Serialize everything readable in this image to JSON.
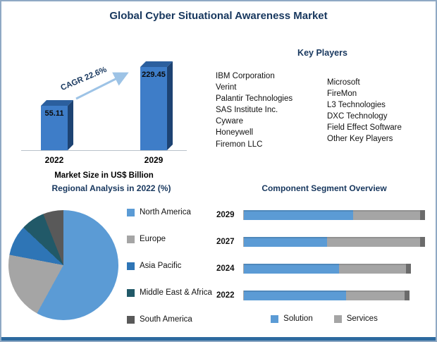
{
  "title": "Global Cyber Situational Awareness Market",
  "key_players": {
    "heading": "Key Players",
    "column1": [
      "IBM Corporation",
      "Verint",
      "Palantir Technologies",
      "SAS Institute Inc.",
      "Cyware",
      "Honeywell",
      "Firemon LLC"
    ],
    "column2": [
      "Microsoft",
      "FireMon",
      "L3 Technologies",
      "DXC Technology",
      "Field Effect Software",
      "Other Key Players"
    ]
  },
  "chart_data": [
    {
      "type": "bar",
      "title": "Market Size in US$ Billion",
      "categories": [
        "2022",
        "2029"
      ],
      "values": [
        55.11,
        229.45
      ],
      "annotation": "CAGR 22.6%",
      "bar_color": "#3E7DC8",
      "arrow_color": "#9DC3E6"
    },
    {
      "type": "pie",
      "title": "Regional Analysis in 2022 (%)",
      "labels": [
        "North America",
        "Europe",
        "Asia Pacific",
        "Middle East & Africa",
        "South America"
      ],
      "values": [
        58,
        20,
        9,
        7,
        6
      ],
      "colors": [
        "#5B9BD5",
        "#A5A5A5",
        "#2E75B6",
        "#215968",
        "#595959"
      ],
      "legend_position": "right"
    },
    {
      "type": "bar",
      "subtype": "stacked-horizontal",
      "title": "Component Segment Overview",
      "categories": [
        "2029",
        "2027",
        "2024",
        "2022"
      ],
      "series": [
        {
          "name": "Solution",
          "color": "#5B9BD5",
          "values": [
            62,
            47,
            54,
            58
          ]
        },
        {
          "name": "Services",
          "color": "#A5A5A5",
          "values": [
            38,
            53,
            38,
            33
          ]
        }
      ],
      "legend_position": "bottom"
    }
  ]
}
